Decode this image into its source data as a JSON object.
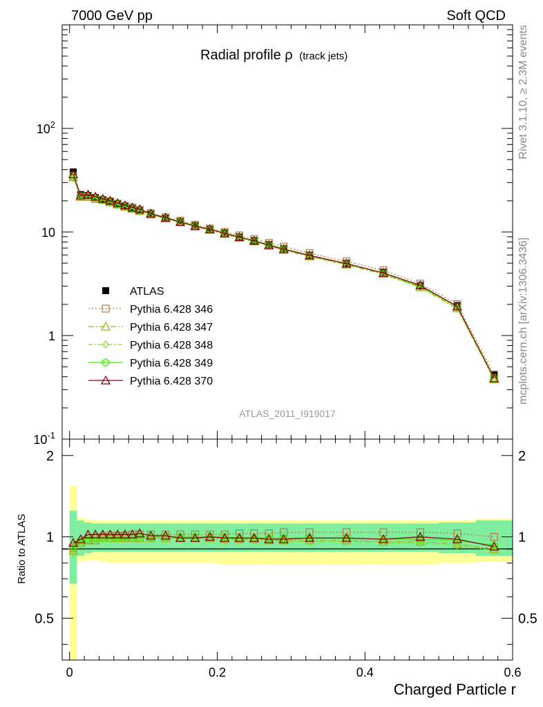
{
  "header": {
    "left": "7000 GeV pp",
    "right": "Soft QCD"
  },
  "side": {
    "rivet": "Rivet 3.1.10, ≥ 2.3M events",
    "mcplots": "mcplots.cern.ch [arXiv:1306.3436]"
  },
  "chart_data": {
    "type": "line",
    "title_main": "Radial profile ρ",
    "title_sub": "(track jets)",
    "analysis_label": "ATLAS_2011_I919017",
    "xlabel": "Charged Particle r",
    "ylabel_ratio": "Ratio to ATLAS",
    "xlim": [
      -0.01,
      0.6
    ],
    "ylim_main": [
      0.1,
      1000
    ],
    "ylim_ratio": [
      0.35,
      2.3
    ],
    "yscale_main": "log",
    "x_ticks": [
      "0",
      "0.2",
      "0.4",
      "0.6"
    ],
    "y_ticks_main": [
      "10^-1",
      "1",
      "10",
      "10^2"
    ],
    "y_ticks_ratio": [
      "0.5",
      "1",
      "2"
    ],
    "legend_position": "middle-left",
    "x": [
      0.005,
      0.015,
      0.025,
      0.035,
      0.045,
      0.055,
      0.065,
      0.075,
      0.085,
      0.095,
      0.11,
      0.13,
      0.15,
      0.17,
      0.19,
      0.21,
      0.23,
      0.25,
      0.27,
      0.29,
      0.325,
      0.375,
      0.425,
      0.475,
      0.525,
      0.575
    ],
    "data": {
      "name": "ATLAS",
      "values": [
        38,
        23,
        22.5,
        21.5,
        20.5,
        19.6,
        18.6,
        17.7,
        16.9,
        16.1,
        14.9,
        13.6,
        12.6,
        11.5,
        10.6,
        9.8,
        9.0,
        8.3,
        7.6,
        6.95,
        6.0,
        5.0,
        4.1,
        3.05,
        1.95,
        0.42
      ],
      "color": "#000000"
    },
    "bands": {
      "stat_upper": [
        1.25,
        1.15,
        1.13,
        1.12,
        1.12,
        1.12,
        1.12,
        1.12,
        1.12,
        1.12,
        1.12,
        1.12,
        1.12,
        1.12,
        1.12,
        1.12,
        1.12,
        1.12,
        1.12,
        1.12,
        1.12,
        1.12,
        1.12,
        1.12,
        1.13,
        1.15
      ],
      "stat_lower": [
        0.67,
        0.85,
        0.87,
        0.88,
        0.88,
        0.88,
        0.88,
        0.88,
        0.88,
        0.88,
        0.88,
        0.88,
        0.88,
        0.88,
        0.88,
        0.88,
        0.88,
        0.88,
        0.88,
        0.88,
        0.88,
        0.88,
        0.88,
        0.88,
        0.87,
        0.85
      ],
      "total_upper": [
        1.55,
        1.18,
        1.16,
        1.15,
        1.15,
        1.15,
        1.15,
        1.15,
        1.15,
        1.15,
        1.15,
        1.15,
        1.15,
        1.15,
        1.15,
        1.15,
        1.15,
        1.15,
        1.15,
        1.15,
        1.15,
        1.15,
        1.15,
        1.15,
        1.15,
        1.17
      ],
      "total_lower": [
        0.35,
        0.81,
        0.82,
        0.82,
        0.81,
        0.8,
        0.8,
        0.8,
        0.8,
        0.8,
        0.8,
        0.8,
        0.8,
        0.8,
        0.8,
        0.79,
        0.79,
        0.79,
        0.79,
        0.79,
        0.79,
        0.79,
        0.79,
        0.79,
        0.8,
        0.81
      ],
      "stat_color": "#7fef9f",
      "total_color": "#ffff99"
    },
    "series": [
      {
        "name": "Pythia 6.428 346",
        "color": "#b8773f",
        "marker": "open-square",
        "dash": "2,3",
        "ratio": [
          0.91,
          0.95,
          0.97,
          0.97,
          1.0,
          1.01,
          1.01,
          1.01,
          1.02,
          1.02,
          1.02,
          1.02,
          1.02,
          1.02,
          1.02,
          1.02,
          1.03,
          1.03,
          1.03,
          1.04,
          1.04,
          1.04,
          1.04,
          1.04,
          1.03,
          1.0
        ]
      },
      {
        "name": "Pythia 6.428 347",
        "color": "#a0b020",
        "marker": "open-triangle",
        "dash": "8,3,2,3",
        "ratio": [
          0.89,
          0.95,
          1.02,
          1.0,
          1.0,
          0.99,
          0.99,
          0.99,
          0.99,
          0.99,
          0.99,
          0.99,
          0.99,
          0.99,
          0.99,
          0.98,
          0.98,
          0.98,
          0.97,
          0.97,
          0.97,
          0.97,
          0.96,
          0.96,
          0.94,
          0.9
        ]
      },
      {
        "name": "Pythia 6.428 348",
        "color": "#88dd22",
        "marker": "open-diamond",
        "dash": "6,3,2,3",
        "ratio": [
          0.87,
          0.94,
          0.97,
          0.97,
          0.98,
          0.98,
          0.98,
          0.99,
          0.99,
          0.99,
          0.99,
          0.99,
          0.98,
          0.98,
          0.98,
          0.97,
          0.97,
          0.97,
          0.97,
          0.96,
          0.96,
          0.96,
          0.95,
          0.95,
          0.93,
          0.89
        ]
      },
      {
        "name": "Pythia 6.428 349",
        "color": "#44ee00",
        "marker": "open-cross",
        "dash": "",
        "ratio": [
          0.92,
          0.97,
          0.98,
          0.99,
          0.99,
          0.99,
          1.0,
          1.0,
          1.0,
          1.0,
          1.0,
          1.0,
          1.0,
          1.0,
          1.0,
          1.0,
          0.99,
          0.99,
          0.99,
          0.99,
          0.99,
          0.99,
          0.98,
          0.98,
          0.97,
          0.93
        ]
      },
      {
        "name": "Pythia 6.428 370",
        "color": "#880011",
        "marker": "open-triangle",
        "dash": "",
        "ratio": [
          0.95,
          0.98,
          1.02,
          1.02,
          1.02,
          1.02,
          1.02,
          1.02,
          1.02,
          1.03,
          1.01,
          1.01,
          0.99,
          0.99,
          1.0,
          0.99,
          0.99,
          0.99,
          0.98,
          0.98,
          0.99,
          0.99,
          0.98,
          1.0,
          0.98,
          0.92
        ]
      }
    ]
  }
}
